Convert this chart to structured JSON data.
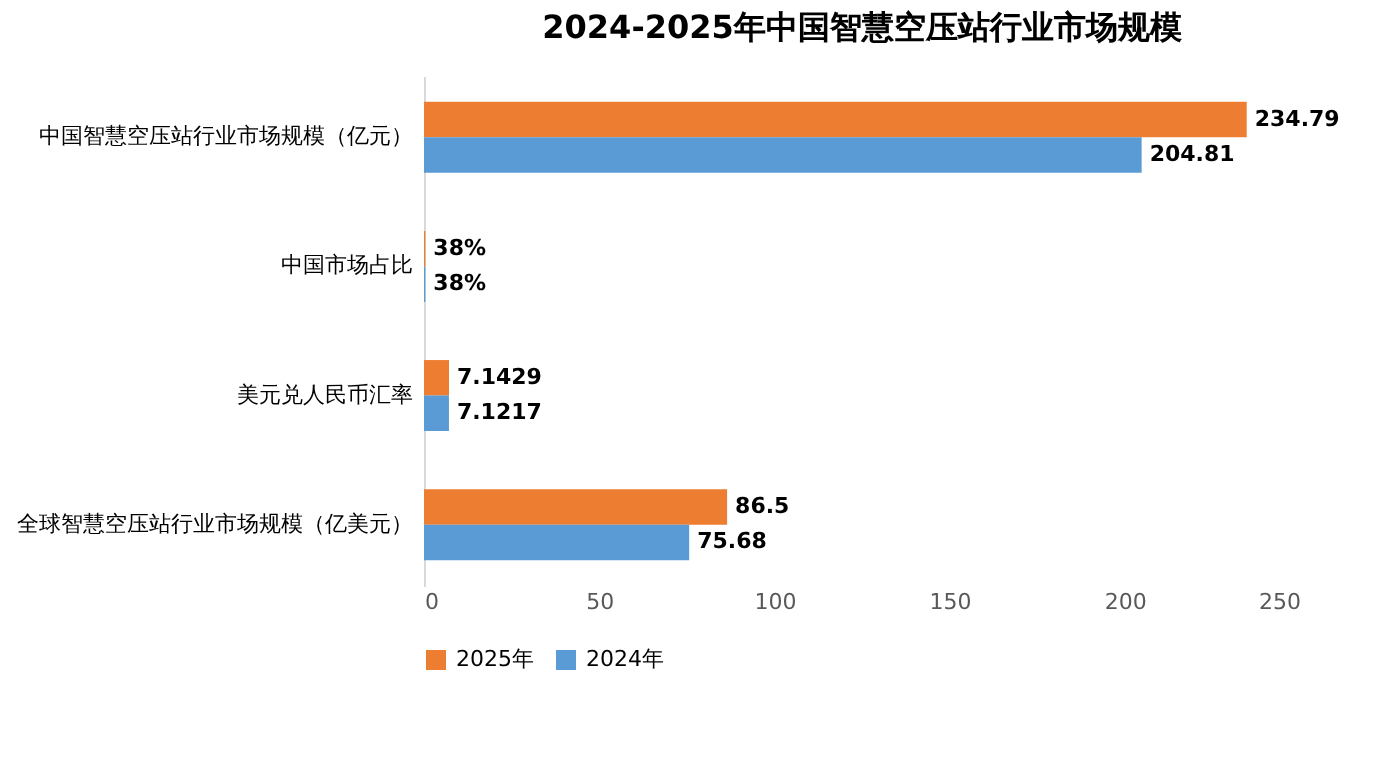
{
  "chart_data": {
    "type": "bar",
    "orientation": "horizontal",
    "title": "2024-2025年中国智慧空压站行业市场规模",
    "categories": [
      "中国智慧空压站行业市场规模（亿元）",
      "中国市场占比",
      "美元兑人民币汇率",
      "全球智慧空压站行业市场规模（亿美元）"
    ],
    "series": [
      {
        "name": "2025年",
        "color": "#ed7d31",
        "values": [
          234.79,
          0.38,
          7.1429,
          86.5
        ],
        "value_labels": [
          "234.79",
          "38%",
          "7.1429",
          "86.5"
        ]
      },
      {
        "name": "2024年",
        "color": "#5b9bd5",
        "values": [
          204.81,
          0.38,
          7.1217,
          75.68
        ],
        "value_labels": [
          "204.81",
          "38%",
          "7.1217",
          "75.68"
        ]
      }
    ],
    "xlim": [
      0,
      250
    ],
    "xticks": [
      0,
      50,
      100,
      150,
      200,
      250
    ],
    "grid": false,
    "legend": "bottom"
  }
}
